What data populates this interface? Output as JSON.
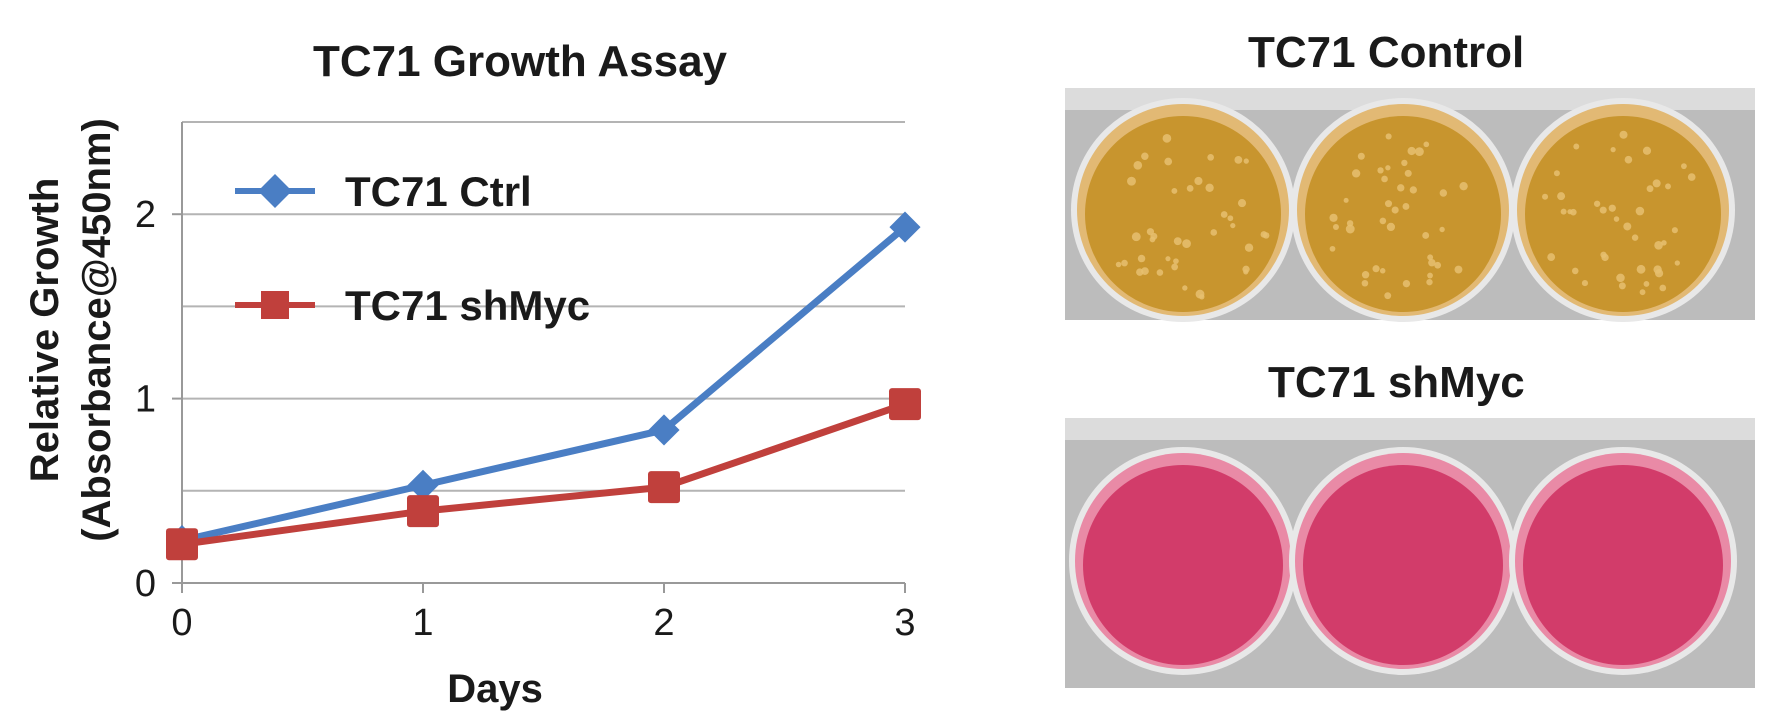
{
  "chart_data": {
    "type": "line",
    "title": "TC71 Growth Assay",
    "xlabel": "Days",
    "ylabel": "Relative Growth",
    "ylabel_units": "(Absorbance@450nm)",
    "x": [
      0,
      1,
      2,
      3
    ],
    "x_ticks": [
      "0",
      "1",
      "2",
      "3"
    ],
    "y_ticks": [
      "0",
      "1",
      "2"
    ],
    "ylim": [
      0,
      2.5
    ],
    "grid": true,
    "legend_position": "top-left",
    "series": [
      {
        "name": "TC71 Ctrl",
        "values": [
          0.23,
          0.53,
          0.83,
          1.93
        ],
        "color": "#4a7ec4",
        "marker": "diamond"
      },
      {
        "name": "TC71 shMyc",
        "values": [
          0.21,
          0.39,
          0.52,
          0.97
        ],
        "color": "#c0403c",
        "marker": "square"
      }
    ]
  },
  "photos": {
    "control": {
      "title": "TC71 Control",
      "wells": 3,
      "medium_color": "#c8952e",
      "well_rim_color": "#e2b974"
    },
    "shmyc": {
      "title": "TC71 shMyc",
      "wells": 3,
      "medium_color": "#d23c6a",
      "well_rim_color": "#e98aa6"
    }
  }
}
